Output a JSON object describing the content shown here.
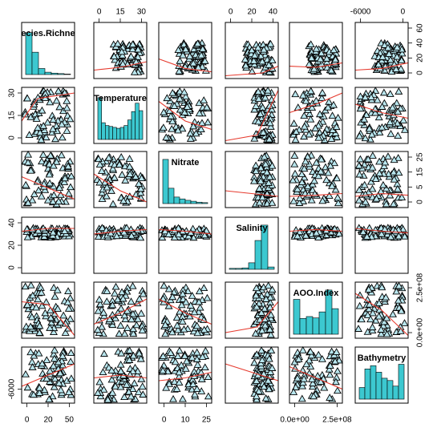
{
  "chart_data": {
    "type": "scatter",
    "title": "",
    "variables": [
      "Species.Richness",
      "Temperature",
      "Nitrate",
      "Salinity",
      "AOO.Index",
      "Bathymetry"
    ],
    "diagonal_labels": [
      "ecies.Richne",
      "Temperature",
      "Nitrate",
      "Salinity",
      "AOO.Index",
      "Bathymetry"
    ],
    "diagonal_panel": "histogram",
    "off_diagonal_panel": "scatter with smoother",
    "marker": "triangle",
    "colors": {
      "histogram": "#3cc8d0",
      "marker_fill": "#b9e6ee",
      "marker_stroke": "#000000",
      "smoother": "#e63a2e",
      "frame": "#000000"
    },
    "top_axis": [
      {
        "column": 2,
        "ticks": [
          "0",
          "15",
          "30"
        ]
      },
      {
        "column": 4,
        "ticks": [
          "0",
          "20",
          "40"
        ]
      },
      {
        "column": 6,
        "ticks": [
          "-6000",
          "0"
        ]
      }
    ],
    "bottom_axis": [
      {
        "column": 1,
        "ticks": [
          "0",
          "20",
          "50"
        ]
      },
      {
        "column": 3,
        "ticks": [
          "0",
          "10",
          "25"
        ]
      },
      {
        "column": 5,
        "ticks": [
          "0.0e+00",
          "2.5e+08"
        ]
      }
    ],
    "left_axis": [
      {
        "row": 2,
        "ticks": [
          "0",
          "15",
          "30"
        ]
      },
      {
        "row": 4,
        "ticks": [
          "0",
          "20",
          "40"
        ]
      },
      {
        "row": 6,
        "ticks": [
          "-6000"
        ]
      }
    ],
    "right_axis": [
      {
        "row": 1,
        "ticks": [
          "0",
          "20",
          "40",
          "60"
        ]
      },
      {
        "row": 3,
        "ticks": [
          "0",
          "5",
          "15",
          "25"
        ]
      },
      {
        "row": 5,
        "ticks": [
          "0.0e+00",
          "2.5e+08"
        ]
      }
    ],
    "histograms": {
      "Species.Richness": [
        0.9,
        0.48,
        0.13,
        0.05,
        0.03,
        0.02,
        0.01
      ],
      "Temperature": [
        0.9,
        0.36,
        0.3,
        0.28,
        0.26,
        0.24,
        0.26,
        0.3,
        0.42,
        0.6,
        0.78,
        0.62
      ],
      "Nitrate": [
        0.95,
        0.33,
        0.14,
        0.1,
        0.07,
        0.05,
        0.03,
        0.02
      ],
      "Salinity": [
        0.02,
        0.02,
        0.03,
        0.14,
        0.62,
        0.95,
        0.05
      ],
      "AOO.Index": [
        0.75,
        0.34,
        0.38,
        0.35,
        0.48,
        0.95,
        0.55
      ],
      "Bathymetry": [
        0.25,
        0.65,
        0.72,
        0.58,
        0.45,
        0.4,
        0.28,
        0.75
      ]
    }
  }
}
